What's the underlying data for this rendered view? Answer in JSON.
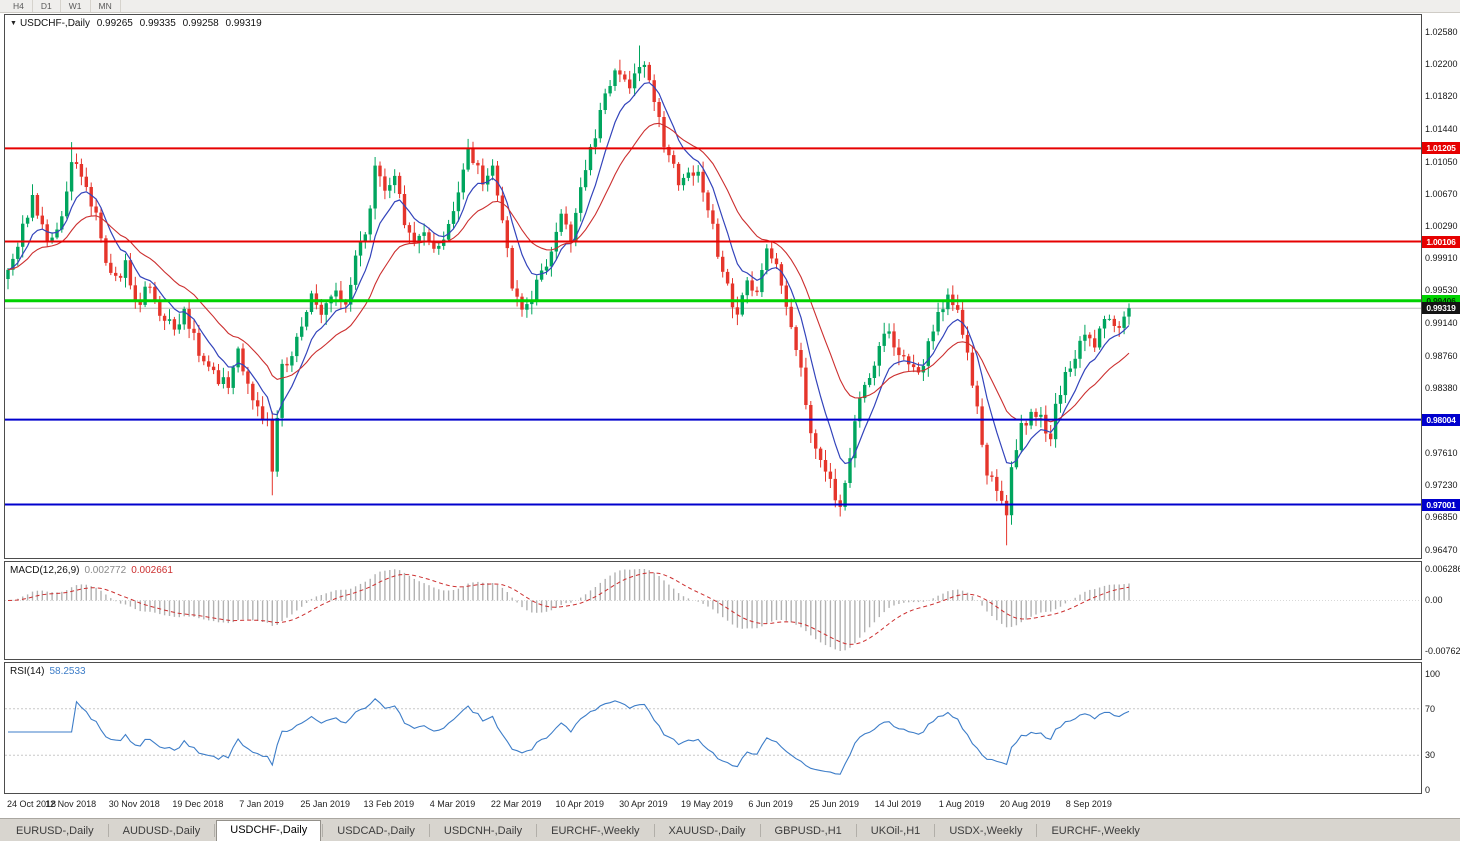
{
  "window": {
    "timeframes": [
      "H4",
      "D1",
      "W1",
      "MN"
    ],
    "tabs": [
      {
        "label": "EURUSD-,Daily",
        "active": false
      },
      {
        "label": "AUDUSD-,Daily",
        "active": false
      },
      {
        "label": "USDCHF-,Daily",
        "active": true
      },
      {
        "label": "USDCAD-,Daily",
        "active": false
      },
      {
        "label": "USDCNH-,Daily",
        "active": false
      },
      {
        "label": "EURCHF-,Weekly",
        "active": false
      },
      {
        "label": "XAUUSD-,Daily",
        "active": false
      },
      {
        "label": "GBPUSD-,H1",
        "active": false
      },
      {
        "label": "UKOil-,H1",
        "active": false
      },
      {
        "label": "USDX-,Weekly",
        "active": false
      },
      {
        "label": "EURCHF-,Weekly",
        "active": false
      }
    ]
  },
  "chart": {
    "title": {
      "symbol": "USDCHF-,Daily",
      "open": "0.99265",
      "high": "0.99335",
      "low": "0.99258",
      "close": "0.99319"
    }
  },
  "macd": {
    "label_name": "MACD(12,26,9)",
    "value_main": "0.002772",
    "value_signal": "0.002661",
    "axis_labels": [
      "0.006286",
      "0.00",
      "-0.00762"
    ]
  },
  "rsi": {
    "label_name": "RSI(14)",
    "value": "58.2533",
    "axis_labels": [
      "100",
      "70",
      "30",
      "0"
    ],
    "levels": [
      70,
      30
    ]
  },
  "colors": {
    "bull": "#00a55e",
    "bear": "#e5352b",
    "ma_fast": "#3344bb",
    "ma_slow": "#cc2f2f",
    "macd_hist": "#b2b2b2",
    "macd_signal": "#cc2f2f",
    "rsi_line": "#3d7dc8",
    "rsi_level": "#c8c8c8",
    "current_price_line": "#bcbcbc",
    "current_price_tag_bg": "#141414",
    "axis_text": "#161616"
  },
  "chart_data": {
    "type": "candlestick",
    "symbol": "USDCHF",
    "timeframe": "Daily",
    "ohlc_display": {
      "open": "0.99265",
      "high": "0.99335",
      "low": "0.99258",
      "close": "0.99319"
    },
    "current_price": "0.99319",
    "candle_count": 230,
    "y_axis": {
      "max": 1.0278,
      "min": 0.9637,
      "labels": [
        "1.02580",
        "1.02200",
        "1.01820",
        "1.01440",
        "1.01050",
        "1.00670",
        "1.00290",
        "0.99910",
        "0.99530",
        "0.99140",
        "0.98760",
        "0.98380",
        "0.97610",
        "0.97230",
        "0.96850",
        "0.96470"
      ]
    },
    "x_tick_labels": [
      "24 Oct 2018",
      "12 Nov 2018",
      "30 Nov 2018",
      "19 Dec 2018",
      "7 Jan 2019",
      "25 Jan 2019",
      "13 Feb 2019",
      "4 Mar 2019",
      "22 Mar 2019",
      "10 Apr 2019",
      "30 Apr 2019",
      "19 May 2019",
      "6 Jun 2019",
      "25 Jun 2019",
      "14 Jul 2019",
      "1 Aug 2019",
      "20 Aug 2019",
      "8 Sep 2019"
    ],
    "horizontal_levels": [
      {
        "value": "1.01205",
        "num": 1.01205,
        "color": "#e60000",
        "tag_text_color": "#ffffff",
        "width": 2
      },
      {
        "value": "1.00106",
        "num": 1.00106,
        "color": "#e60000",
        "tag_text_color": "#ffffff",
        "width": 2
      },
      {
        "value": "0.99406",
        "num": 0.99406,
        "color": "#00d200",
        "tag_text_color": "#003300",
        "width": 3
      },
      {
        "value": "0.98004",
        "num": 0.98004,
        "color": "#0000cd",
        "tag_text_color": "#ffffff",
        "width": 2
      },
      {
        "value": "0.97001",
        "num": 0.97001,
        "color": "#0000cd",
        "tag_text_color": "#ffffff",
        "width": 2
      }
    ],
    "price_path_anchors": [
      [
        0,
        0.997
      ],
      [
        5,
        1.006
      ],
      [
        8,
        1.0005
      ],
      [
        11,
        1.004
      ],
      [
        13,
        1.011
      ],
      [
        15,
        1.0085
      ],
      [
        18,
        1.0045
      ],
      [
        20,
        0.999
      ],
      [
        22,
        0.9965
      ],
      [
        24,
        0.9985
      ],
      [
        26,
        0.9935
      ],
      [
        29,
        0.996
      ],
      [
        31,
        0.993
      ],
      [
        34,
        0.9905
      ],
      [
        36,
        0.993
      ],
      [
        38,
        0.9895
      ],
      [
        41,
        0.986
      ],
      [
        45,
        0.984
      ],
      [
        47,
        0.989
      ],
      [
        49,
        0.9835
      ],
      [
        51,
        0.9815
      ],
      [
        53,
        0.98
      ],
      [
        54,
        0.9745
      ],
      [
        56,
        0.986
      ],
      [
        58,
        0.988
      ],
      [
        60,
        0.991
      ],
      [
        62,
        0.995
      ],
      [
        64,
        0.993
      ],
      [
        67,
        0.995
      ],
      [
        69,
        0.9935
      ],
      [
        71,
        0.999
      ],
      [
        73,
        1.002
      ],
      [
        75,
        1.0095
      ],
      [
        77,
        1.0075
      ],
      [
        79,
        1.0085
      ],
      [
        81,
        1.0035
      ],
      [
        83,
        1.0005
      ],
      [
        85,
        1.002
      ],
      [
        87,
        0.9995
      ],
      [
        90,
        1.003
      ],
      [
        92,
        1.007
      ],
      [
        94,
        1.0115
      ],
      [
        95,
        1.0105
      ],
      [
        97,
        1.0085
      ],
      [
        99,
        1.0095
      ],
      [
        101,
        1.0035
      ],
      [
        103,
        0.996
      ],
      [
        105,
        0.9925
      ],
      [
        107,
        0.9945
      ],
      [
        109,
        0.998
      ],
      [
        111,
        0.9995
      ],
      [
        113,
        1.004
      ],
      [
        115,
        1.0015
      ],
      [
        117,
        1.008
      ],
      [
        119,
        1.012
      ],
      [
        121,
        1.016
      ],
      [
        123,
        1.0195
      ],
      [
        125,
        1.0215
      ],
      [
        127,
        1.0185
      ],
      [
        129,
        1.022
      ],
      [
        131,
        1.0205
      ],
      [
        132,
        1.018
      ],
      [
        134,
        1.012
      ],
      [
        137,
        1.0085
      ],
      [
        139,
        1.01
      ],
      [
        141,
        1.0085
      ],
      [
        143,
        1.005
      ],
      [
        145,
        1.0
      ],
      [
        147,
        0.996
      ],
      [
        149,
        0.992
      ],
      [
        151,
        0.997
      ],
      [
        153,
        0.995
      ],
      [
        155,
        1.0
      ],
      [
        157,
        0.998
      ],
      [
        159,
        0.994
      ],
      [
        161,
        0.989
      ],
      [
        163,
        0.982
      ],
      [
        165,
        0.976
      ],
      [
        167,
        0.9735
      ],
      [
        170,
        0.97
      ],
      [
        172,
        0.976
      ],
      [
        174,
        0.983
      ],
      [
        176,
        0.985
      ],
      [
        178,
        0.989
      ],
      [
        180,
        0.99
      ],
      [
        182,
        0.988
      ],
      [
        184,
        0.987
      ],
      [
        186,
        0.985
      ],
      [
        188,
        0.989
      ],
      [
        190,
        0.992
      ],
      [
        192,
        0.994
      ],
      [
        194,
        0.993
      ],
      [
        196,
        0.988
      ],
      [
        198,
        0.981
      ],
      [
        200,
        0.974
      ],
      [
        202,
        0.972
      ],
      [
        204,
        0.9685
      ],
      [
        205,
        0.974
      ],
      [
        207,
        0.979
      ],
      [
        209,
        0.981
      ],
      [
        211,
        0.98
      ],
      [
        213,
        0.977
      ],
      [
        214,
        0.982
      ],
      [
        216,
        0.985
      ],
      [
        218,
        0.988
      ],
      [
        220,
        0.9905
      ],
      [
        222,
        0.989
      ],
      [
        224,
        0.992
      ],
      [
        226,
        0.9905
      ],
      [
        229,
        0.9932
      ]
    ],
    "candle_overrides": [
      {
        "index": 13,
        "high": 1.0128
      },
      {
        "index": 54,
        "low": 0.9711
      },
      {
        "index": 94,
        "high": 1.0124
      },
      {
        "index": 129,
        "high": 1.0242
      },
      {
        "index": 170,
        "low": 0.9686
      },
      {
        "index": 204,
        "low": 0.9652
      }
    ],
    "indicators": [
      {
        "name": "MACD",
        "params": "12,26,9",
        "value_main": "0.002772",
        "value_signal": "0.002661",
        "axis_labels": [
          "0.006286",
          "0.00",
          "-0.00762"
        ]
      },
      {
        "name": "RSI",
        "params": "14",
        "value": "58.2533",
        "axis_labels": [
          "100",
          "70",
          "30",
          "0"
        ],
        "levels": [
          70,
          30
        ]
      }
    ]
  }
}
